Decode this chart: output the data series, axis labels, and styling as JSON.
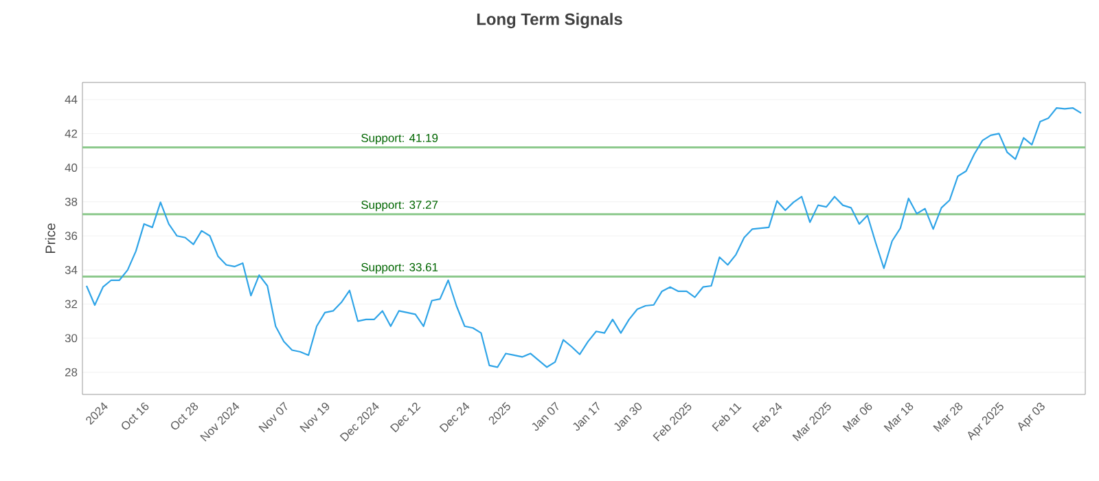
{
  "chart_data": {
    "type": "line",
    "title": "Long Term Signals",
    "ylabel": "Price",
    "categories": [
      null,
      null,
      "2024",
      null,
      null,
      null,
      null,
      "Oct 16",
      null,
      null,
      null,
      null,
      null,
      "Oct 28",
      null,
      null,
      null,
      null,
      "Nov 2024",
      null,
      null,
      null,
      null,
      null,
      "Nov 07",
      null,
      null,
      null,
      null,
      "Nov 19",
      null,
      null,
      null,
      null,
      null,
      "Dec 2024",
      null,
      null,
      null,
      null,
      "Dec 12",
      null,
      null,
      null,
      null,
      null,
      "Dec 24",
      null,
      null,
      null,
      null,
      "2025",
      null,
      null,
      null,
      null,
      null,
      "Jan 07",
      null,
      null,
      null,
      null,
      "Jan 17",
      null,
      null,
      null,
      null,
      "Jan 30",
      null,
      null,
      null,
      null,
      null,
      "Feb 2025",
      null,
      null,
      null,
      null,
      null,
      "Feb 11",
      null,
      null,
      null,
      null,
      "Feb 24",
      null,
      null,
      null,
      null,
      null,
      "Mar 2025",
      null,
      null,
      null,
      null,
      "Mar 06",
      null,
      null,
      null,
      null,
      "Mar 18",
      null,
      null,
      null,
      null,
      null,
      "Mar 28",
      null,
      null,
      null,
      null,
      "Apr 2025",
      null,
      null,
      null,
      null,
      "Apr 03",
      null,
      null,
      null,
      null,
      null
    ],
    "series": [
      {
        "color": "#2fa4e7",
        "values": [
          33.07,
          31.94,
          33.0,
          33.4,
          33.4,
          34.0,
          35.1,
          36.7,
          36.5,
          37.97,
          36.7,
          36.0,
          35.9,
          35.5,
          36.3,
          36.0,
          34.8,
          34.3,
          34.2,
          34.4,
          32.5,
          33.7,
          33.07,
          30.7,
          29.8,
          29.3,
          29.2,
          29.0,
          30.7,
          31.5,
          31.6,
          32.1,
          32.8,
          31.0,
          31.1,
          31.1,
          31.6,
          30.7,
          31.6,
          31.5,
          31.4,
          30.7,
          32.2,
          32.3,
          33.4,
          31.9,
          30.7,
          30.6,
          30.3,
          28.4,
          28.3,
          29.1,
          29.0,
          28.9,
          29.1,
          28.7,
          28.3,
          28.6,
          29.9,
          29.5,
          29.05,
          29.8,
          30.4,
          30.3,
          31.1,
          30.3,
          31.1,
          31.7,
          31.9,
          31.95,
          32.75,
          33.0,
          32.75,
          32.75,
          32.4,
          33.0,
          33.07,
          34.75,
          34.3,
          34.9,
          35.9,
          36.4,
          36.45,
          36.5,
          38.05,
          37.5,
          37.97,
          38.3,
          36.8,
          37.8,
          37.7,
          38.3,
          37.8,
          37.65,
          36.7,
          37.2,
          35.6,
          34.1,
          35.7,
          36.45,
          38.2,
          37.3,
          37.6,
          36.4,
          37.65,
          38.1,
          39.5,
          39.8,
          40.8,
          41.6,
          41.9,
          42.0,
          40.9,
          40.5,
          41.75,
          41.35,
          42.7,
          42.9,
          43.5,
          43.45,
          43.5,
          43.2
        ]
      }
    ],
    "ylim": [
      26.7,
      45
    ],
    "yticks": [
      28,
      30,
      32,
      34,
      36,
      38,
      40,
      42,
      44
    ],
    "grid": "y",
    "ref_lines": [
      {
        "axis": "y",
        "value": 41.19,
        "label": "Support: 41.19",
        "color": "#8cc98c"
      },
      {
        "axis": "y",
        "value": 37.27,
        "label": "Support: 37.27",
        "color": "#8cc98c"
      },
      {
        "axis": "y",
        "value": 33.61,
        "label": "Support: 33.61",
        "color": "#8cc98c"
      }
    ]
  }
}
